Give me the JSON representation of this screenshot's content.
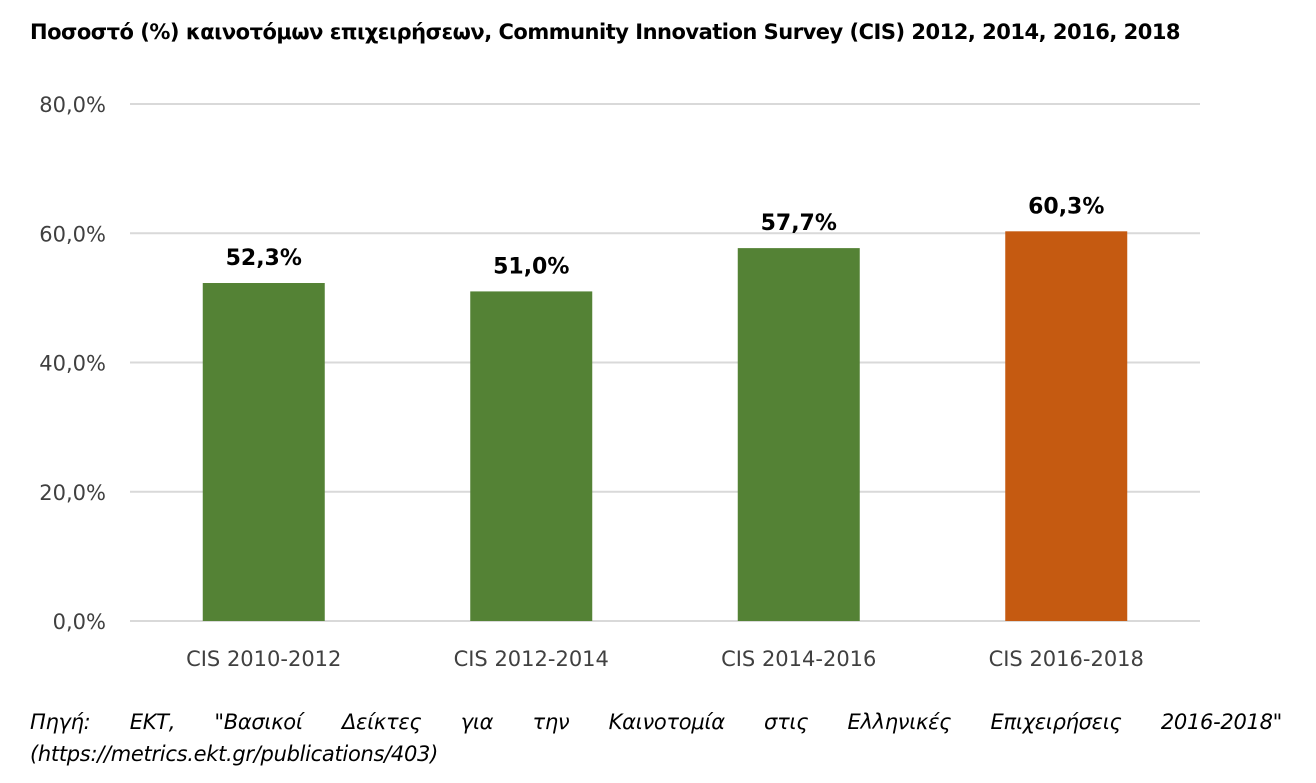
{
  "chart_data": {
    "type": "bar",
    "title": "Ποσοστό (%) καινοτόμων επιχειρήσεων, Community Innovation Survey (CIS) 2012, 2014, 2016, 2018",
    "xlabel": "",
    "ylabel": "",
    "categories": [
      "CIS 2010-2012",
      "CIS 2012-2014",
      "CIS 2014-2016",
      "CIS 2016-2018"
    ],
    "values": [
      52.3,
      51.0,
      57.7,
      60.3
    ],
    "data_labels": [
      "52,3%",
      "51,0%",
      "57,7%",
      "60,3%"
    ],
    "ylim": [
      0,
      80
    ],
    "yticks": [
      0,
      20,
      40,
      60,
      80
    ],
    "ytick_labels": [
      "0,0%",
      "20,0%",
      "40,0%",
      "60,0%",
      "80,0%"
    ],
    "grid": true,
    "legend": "none",
    "colors": [
      "#548235",
      "#548235",
      "#548235",
      "#C55A11"
    ]
  },
  "source": {
    "line1": "Πηγή: ΕΚΤ, \"Βασικοί Δείκτες για την Καινοτομία στις Ελληνικές Επιχειρήσεις 2016-2018\"",
    "line2": "(https://metrics.ekt.gr/publications/403)"
  }
}
